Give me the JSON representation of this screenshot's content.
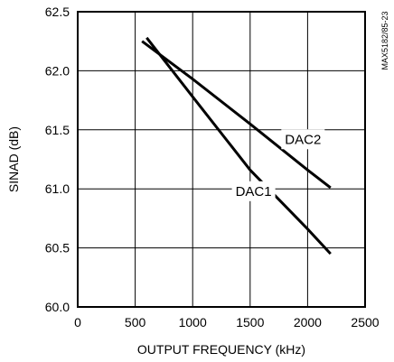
{
  "chart_data": {
    "type": "line",
    "xlabel": "OUTPUT FREQUENCY (kHz)",
    "ylabel": "SINAD (dB)",
    "xlim": [
      0,
      2500
    ],
    "ylim": [
      60.0,
      62.5
    ],
    "x_ticks": [
      0,
      500,
      1000,
      1500,
      2000,
      2500
    ],
    "y_ticks": [
      60.0,
      60.5,
      61.0,
      61.5,
      62.0,
      62.5
    ],
    "x_tick_labels": [
      "0",
      "500",
      "1000",
      "1500",
      "2000",
      "2500"
    ],
    "y_tick_labels": [
      "60.0",
      "60.5",
      "61.0",
      "61.5",
      "62.0",
      "62.5"
    ],
    "grid": true,
    "series": [
      {
        "name": "DAC1",
        "x": [
          600,
          1000,
          1500,
          2000,
          2200
        ],
        "y": [
          62.28,
          61.78,
          61.16,
          60.66,
          60.45
        ]
      },
      {
        "name": "DAC2",
        "x": [
          560,
          1000,
          1500,
          2000,
          2200
        ],
        "y": [
          62.25,
          61.93,
          61.55,
          61.16,
          61.01
        ]
      }
    ],
    "figure_id": "MAX5182/85-23"
  }
}
